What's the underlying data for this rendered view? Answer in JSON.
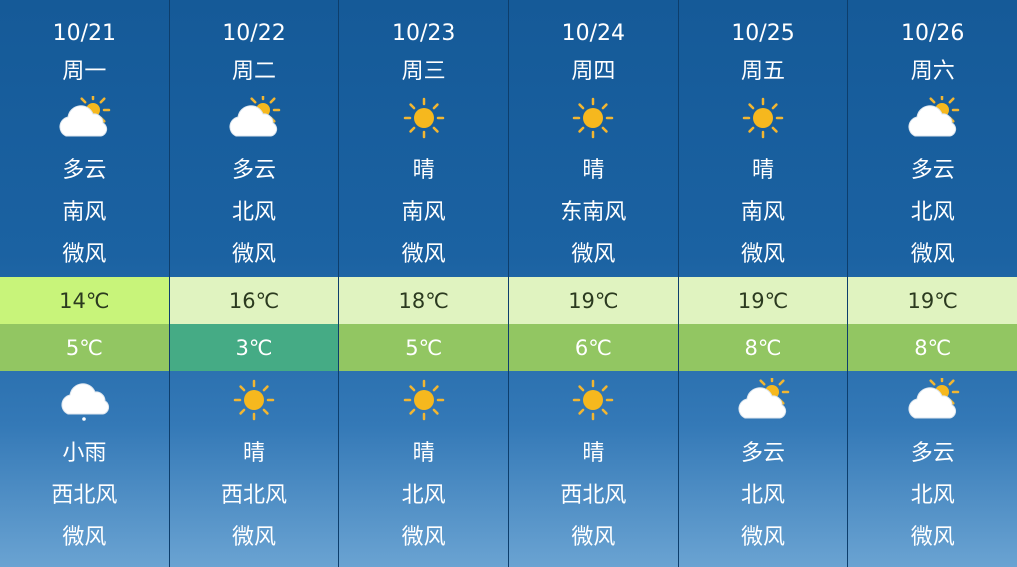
{
  "colors": {
    "high_default": "#e0f3c0",
    "high_first": "#c8f47a",
    "low_default": "#92c662",
    "low_cold": "#45ab85"
  },
  "days": [
    {
      "date": "10/21",
      "weekday": "周一",
      "day_icon": "partly-cloudy-icon",
      "day_cond": "多云",
      "day_wind_dir": "南风",
      "day_wind_level": "微风",
      "high": "14℃",
      "low": "5℃",
      "high_color": "#c8f47a",
      "low_color": "#92c662",
      "night_icon": "light-rain-icon",
      "night_cond": "小雨",
      "night_wind_dir": "西北风",
      "night_wind_level": "微风"
    },
    {
      "date": "10/22",
      "weekday": "周二",
      "day_icon": "partly-cloudy-icon",
      "day_cond": "多云",
      "day_wind_dir": "北风",
      "day_wind_level": "微风",
      "high": "16℃",
      "low": "3℃",
      "high_color": "#e0f3c0",
      "low_color": "#45ab85",
      "night_icon": "sunny-icon",
      "night_cond": "晴",
      "night_wind_dir": "西北风",
      "night_wind_level": "微风"
    },
    {
      "date": "10/23",
      "weekday": "周三",
      "day_icon": "sunny-icon",
      "day_cond": "晴",
      "day_wind_dir": "南风",
      "day_wind_level": "微风",
      "high": "18℃",
      "low": "5℃",
      "high_color": "#e0f3c0",
      "low_color": "#92c662",
      "night_icon": "sunny-icon",
      "night_cond": "晴",
      "night_wind_dir": "北风",
      "night_wind_level": "微风"
    },
    {
      "date": "10/24",
      "weekday": "周四",
      "day_icon": "sunny-icon",
      "day_cond": "晴",
      "day_wind_dir": "东南风",
      "day_wind_level": "微风",
      "high": "19℃",
      "low": "6℃",
      "high_color": "#e0f3c0",
      "low_color": "#92c662",
      "night_icon": "sunny-icon",
      "night_cond": "晴",
      "night_wind_dir": "西北风",
      "night_wind_level": "微风"
    },
    {
      "date": "10/25",
      "weekday": "周五",
      "day_icon": "sunny-icon",
      "day_cond": "晴",
      "day_wind_dir": "南风",
      "day_wind_level": "微风",
      "high": "19℃",
      "low": "8℃",
      "high_color": "#e0f3c0",
      "low_color": "#92c662",
      "night_icon": "partly-cloudy-icon",
      "night_cond": "多云",
      "night_wind_dir": "北风",
      "night_wind_level": "微风"
    },
    {
      "date": "10/26",
      "weekday": "周六",
      "day_icon": "partly-cloudy-icon",
      "day_cond": "多云",
      "day_wind_dir": "北风",
      "day_wind_level": "微风",
      "high": "19℃",
      "low": "8℃",
      "high_color": "#e0f3c0",
      "low_color": "#92c662",
      "night_icon": "partly-cloudy-icon",
      "night_cond": "多云",
      "night_wind_dir": "北风",
      "night_wind_level": "微风"
    }
  ]
}
